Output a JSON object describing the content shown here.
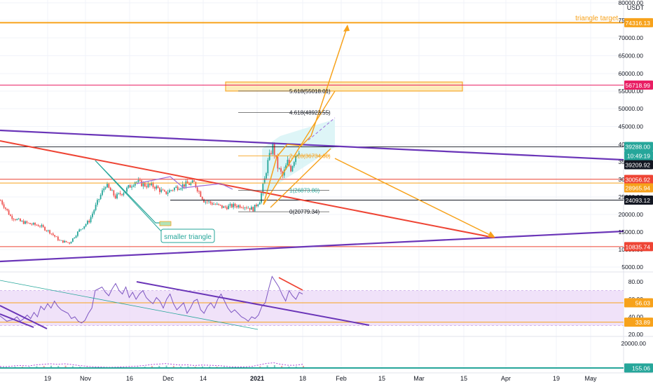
{
  "colors": {
    "orange": "#f7a21b",
    "red": "#ee4434",
    "purple": "#6a35b8",
    "teal": "#26a69a",
    "green_candle": "#26a69a",
    "red_candle": "#ef5350",
    "pink_line": "#e91e63",
    "rsi_band": "#e9d6f6",
    "volume_line": "#b146d6",
    "grid": "#f0f3fa",
    "axis_text": "#131722"
  },
  "chart_data": [
    {
      "type": "candlestick",
      "title": "",
      "currency": "USDT",
      "y_axis_ticks": [
        5000,
        10000,
        15000,
        20000,
        25000,
        30000,
        35000,
        40000,
        45000,
        50000,
        55000,
        60000,
        65000,
        70000,
        75000,
        80000
      ],
      "y_axis_tick_labels": [
        "5000.00",
        "10000.00",
        "15000.00",
        "20000.00",
        "25000.00",
        "30000.00",
        "35000.00",
        "40000.00",
        "45000.00",
        "50000.00",
        "55000.00",
        "60000.00",
        "65000.00",
        "70000.00",
        "75000.00",
        "80000.00"
      ],
      "x_axis_labels": [
        "19",
        "Nov",
        "16",
        "Dec",
        "14",
        "2021",
        "18",
        "Feb",
        "15",
        "Mar",
        "15",
        "Apr",
        "19",
        "May"
      ],
      "price_labels": [
        {
          "label": "74316.13",
          "value": 74316.13,
          "color": "#f7a21b"
        },
        {
          "label": "56718.99",
          "value": 56718.99,
          "color": "#e91e63"
        },
        {
          "label": "39288.00",
          "value": 39288.0,
          "color": "#26a69a"
        },
        {
          "label": "10:49:19",
          "value": 37000,
          "color": "#26a69a"
        },
        {
          "label": "39209.92",
          "value": 35400,
          "color": "#131722"
        },
        {
          "label": "30056.92",
          "value": 30056.92,
          "color": "#ee4434"
        },
        {
          "label": "28965.94",
          "value": 28500,
          "color": "#f7a21b"
        },
        {
          "label": "24093.12",
          "value": 24093.12,
          "color": "#131722"
        },
        {
          "label": "10835.74",
          "value": 10835.74,
          "color": "#ee4434"
        }
      ],
      "annotations": [
        {
          "text": "triangle target.",
          "kind": "label"
        },
        {
          "text": "smaller triangle",
          "kind": "callout"
        }
      ],
      "fibonacci_levels": [
        {
          "ratio": "0",
          "label": "0(20779.34)",
          "price": 20779.34
        },
        {
          "ratio": "1",
          "label": "1(26873.80)",
          "price": 26873.8
        },
        {
          "ratio": "2.618",
          "label": "2.618(36734.60)",
          "price": 36734.6
        },
        {
          "ratio": "4.618",
          "label": "4.618(48923.55)",
          "price": 48923.55
        },
        {
          "ratio": "5.618",
          "label": "5.618(55018.01)",
          "price": 55018.01
        }
      ],
      "resistance_zone": {
        "low": 55018,
        "high": 57600
      },
      "price_path": [
        {
          "day": 0,
          "price": 24000
        },
        {
          "day": 6,
          "price": 19500
        },
        {
          "day": 12,
          "price": 18000
        },
        {
          "day": 18,
          "price": 17300
        },
        {
          "day": 24,
          "price": 16800
        },
        {
          "day": 30,
          "price": 15000
        },
        {
          "day": 36,
          "price": 12500
        },
        {
          "day": 42,
          "price": 11900
        },
        {
          "day": 48,
          "price": 15500
        },
        {
          "day": 54,
          "price": 18200
        },
        {
          "day": 60,
          "price": 24500
        },
        {
          "day": 64,
          "price": 28500
        },
        {
          "day": 70,
          "price": 25000
        },
        {
          "day": 76,
          "price": 26800
        },
        {
          "day": 82,
          "price": 29500
        },
        {
          "day": 88,
          "price": 28400
        },
        {
          "day": 94,
          "price": 28000
        },
        {
          "day": 100,
          "price": 26000
        },
        {
          "day": 106,
          "price": 27500
        },
        {
          "day": 112,
          "price": 28500
        },
        {
          "day": 118,
          "price": 29000
        },
        {
          "day": 124,
          "price": 24000
        },
        {
          "day": 130,
          "price": 23000
        },
        {
          "day": 136,
          "price": 22000
        },
        {
          "day": 142,
          "price": 22500
        },
        {
          "day": 148,
          "price": 22500
        },
        {
          "day": 154,
          "price": 21500
        },
        {
          "day": 158,
          "price": 24000
        },
        {
          "day": 161,
          "price": 30000
        },
        {
          "day": 163,
          "price": 35000
        },
        {
          "day": 166,
          "price": 39500
        },
        {
          "day": 169,
          "price": 33500
        },
        {
          "day": 172,
          "price": 31000
        },
        {
          "day": 175,
          "price": 35000
        },
        {
          "day": 177,
          "price": 33000
        },
        {
          "day": 180,
          "price": 37000
        },
        {
          "day": 183,
          "price": 39209.92
        }
      ]
    },
    {
      "type": "line",
      "title": "",
      "y_axis_ticks": [
        20,
        40,
        60,
        80
      ],
      "y_axis_tick_labels": [
        "20.00",
        "40.00",
        "60.00",
        "80.00"
      ],
      "band": [
        30,
        70
      ],
      "price_labels": [
        {
          "label": "56.03",
          "value": 56.03,
          "color": "#f7a21b"
        },
        {
          "label": "33.89",
          "value": 33.89,
          "color": "#f7a21b"
        }
      ],
      "series": [
        {
          "values": [
            41,
            38,
            35,
            36,
            37,
            40,
            35,
            38,
            42,
            38,
            45,
            40,
            52,
            48,
            55,
            50,
            58,
            52,
            48,
            46,
            44,
            38,
            40,
            35,
            33,
            36,
            44,
            50,
            70,
            72,
            74,
            68,
            64,
            72,
            78,
            70,
            66,
            74,
            62,
            68,
            60,
            66,
            70,
            62,
            58,
            55,
            62,
            58,
            50,
            60,
            66,
            55,
            48,
            52,
            56,
            44,
            50,
            58,
            60,
            48,
            44,
            52,
            56,
            50,
            60,
            66,
            58,
            50,
            45,
            48,
            44,
            40,
            38,
            35,
            40,
            38,
            42,
            52,
            56,
            72,
            86,
            80,
            74,
            65,
            58,
            70,
            64,
            60,
            68,
            66
          ]
        }
      ]
    },
    {
      "type": "line",
      "title": "",
      "y_axis_ticks": [
        20000
      ],
      "y_axis_tick_labels": [
        "20000.00"
      ],
      "price_labels": [
        {
          "label": "155.06",
          "value": 155.06,
          "color": "#26a69a"
        }
      ],
      "series": [
        {
          "values": [
            1200,
            1100,
            1800,
            2000,
            1600,
            2600,
            3000,
            3400,
            3000,
            3400,
            2800,
            2000,
            1400,
            1000,
            800,
            600,
            700,
            900,
            1200,
            1500,
            2000,
            2800,
            3200,
            3600,
            3000,
            2400,
            2600,
            2000,
            2400,
            2200,
            2000,
            1600,
            1000,
            800,
            900,
            1300,
            2600,
            3800,
            4200,
            3000,
            2200,
            2200,
            3000
          ]
        }
      ]
    }
  ]
}
